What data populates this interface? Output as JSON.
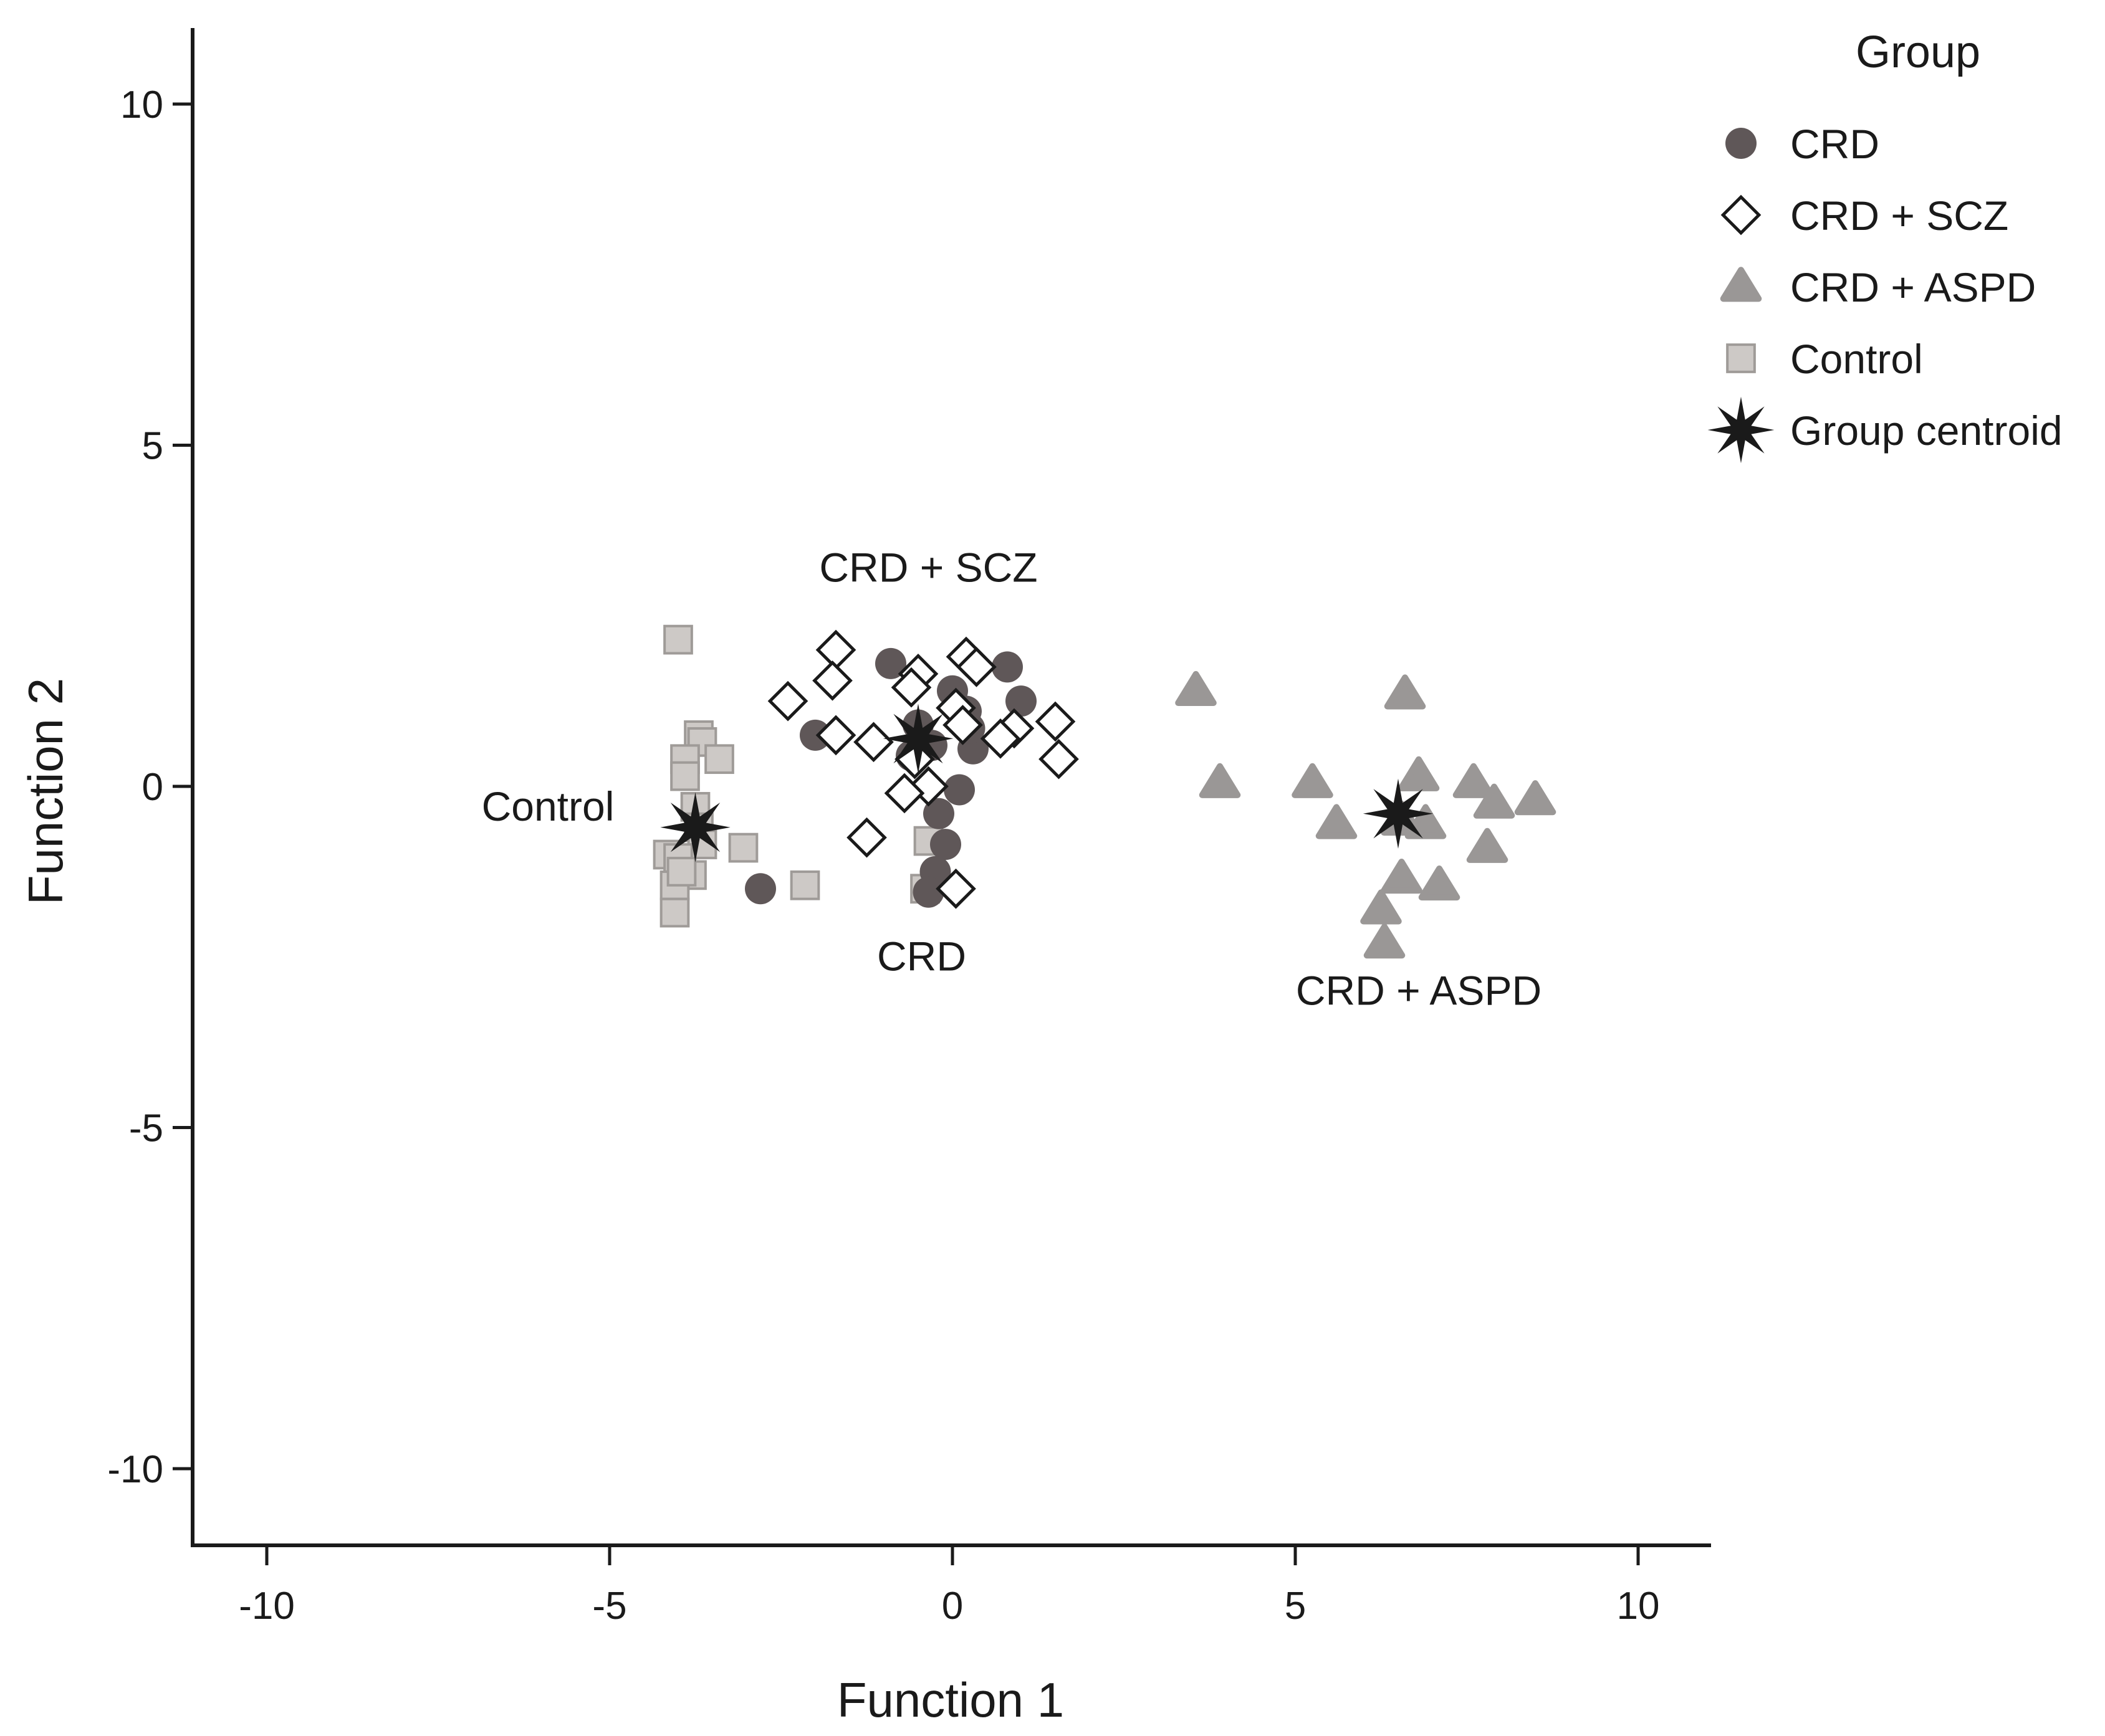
{
  "chart_data": {
    "type": "scatter",
    "title": "",
    "xlabel": "Function 1",
    "ylabel": "Function 2",
    "xlim": [
      -11.2,
      11.0
    ],
    "ylim": [
      -11.2,
      11.2
    ],
    "xticks": [
      -10,
      -5,
      0,
      5,
      10
    ],
    "yticks": [
      10,
      5,
      0,
      -5,
      -10
    ],
    "xtick_labels": [
      "-10",
      "-5",
      "0",
      "5",
      "10"
    ],
    "ytick_labels": [
      "10",
      "5",
      "0",
      "-5",
      "-10"
    ],
    "legend": {
      "title": "Group",
      "position": "top-right",
      "entries": [
        "CRD",
        "CRD + SCZ",
        "CRD + ASPD",
        "Control",
        "Group centroid"
      ]
    },
    "colors": {
      "CRD": "#5f5758",
      "CRD + SCZ": "#ffffff",
      "CRD + ASPD": "#9a9796",
      "Control": "#cdc9c6",
      "outline": "#1a1a1a"
    },
    "series": [
      {
        "name": "CRD",
        "marker": "circle",
        "points": [
          [
            -0.9,
            1.8
          ],
          [
            0.8,
            1.75
          ],
          [
            1.0,
            1.25
          ],
          [
            -2.0,
            0.75
          ],
          [
            0.3,
            0.55
          ],
          [
            -0.5,
            0.9
          ],
          [
            0.0,
            1.4
          ],
          [
            0.2,
            1.1
          ],
          [
            -0.3,
            0.6
          ],
          [
            0.1,
            -0.05
          ],
          [
            -0.2,
            -0.4
          ],
          [
            -0.1,
            -0.85
          ],
          [
            -0.25,
            -1.25
          ],
          [
            -2.8,
            -1.5
          ],
          [
            -0.35,
            -1.55
          ],
          [
            0.25,
            0.85
          ],
          [
            -0.6,
            0.45
          ]
        ]
      },
      {
        "name": "CRD + SCZ",
        "marker": "diamond",
        "points": [
          [
            -1.7,
            2.0
          ],
          [
            -1.75,
            1.55
          ],
          [
            0.2,
            1.9
          ],
          [
            0.35,
            1.75
          ],
          [
            -0.5,
            1.65
          ],
          [
            -0.6,
            1.45
          ],
          [
            -2.4,
            1.25
          ],
          [
            0.05,
            1.15
          ],
          [
            1.5,
            0.95
          ],
          [
            0.9,
            0.85
          ],
          [
            0.7,
            0.7
          ],
          [
            0.15,
            0.9
          ],
          [
            -1.7,
            0.75
          ],
          [
            -1.15,
            0.65
          ],
          [
            1.55,
            0.4
          ],
          [
            -0.55,
            0.4
          ],
          [
            -0.35,
            0.0
          ],
          [
            -0.7,
            -0.1
          ],
          [
            -1.25,
            -0.75
          ],
          [
            0.05,
            -1.5
          ]
        ]
      },
      {
        "name": "CRD + ASPD",
        "marker": "triangle",
        "points": [
          [
            3.55,
            1.4
          ],
          [
            6.6,
            1.35
          ],
          [
            3.9,
            0.05
          ],
          [
            5.25,
            0.05
          ],
          [
            6.8,
            0.15
          ],
          [
            7.6,
            0.05
          ],
          [
            7.9,
            -0.25
          ],
          [
            8.5,
            -0.2
          ],
          [
            5.6,
            -0.55
          ],
          [
            6.55,
            -0.5
          ],
          [
            6.9,
            -0.55
          ],
          [
            7.8,
            -0.9
          ],
          [
            6.55,
            -1.35
          ],
          [
            7.1,
            -1.45
          ],
          [
            6.25,
            -1.8
          ],
          [
            6.3,
            -2.3
          ]
        ]
      },
      {
        "name": "Control",
        "marker": "square",
        "points": [
          [
            -4.0,
            2.15
          ],
          [
            -3.7,
            0.75
          ],
          [
            -3.65,
            0.65
          ],
          [
            -3.4,
            0.4
          ],
          [
            -3.9,
            0.4
          ],
          [
            -3.9,
            0.15
          ],
          [
            -3.75,
            -0.3
          ],
          [
            -3.7,
            -0.6
          ],
          [
            -3.65,
            -0.85
          ],
          [
            -4.15,
            -1.0
          ],
          [
            -4.0,
            -1.05
          ],
          [
            -3.8,
            -1.3
          ],
          [
            -4.05,
            -1.45
          ],
          [
            -4.05,
            -1.85
          ],
          [
            -3.05,
            -0.9
          ],
          [
            -2.15,
            -1.45
          ],
          [
            -0.35,
            -0.8
          ],
          [
            -0.4,
            -1.5
          ],
          [
            -3.95,
            -1.25
          ]
        ]
      },
      {
        "name": "Group centroid",
        "marker": "star",
        "points": [
          [
            -0.5,
            0.7
          ],
          [
            -3.75,
            -0.6
          ],
          [
            6.5,
            -0.4
          ]
        ]
      }
    ],
    "annotations": [
      {
        "text": "CRD + SCZ",
        "x": -0.35,
        "y": 3.0
      },
      {
        "text": "Control",
        "x": -5.9,
        "y": -0.5
      },
      {
        "text": "CRD",
        "x": -0.45,
        "y": -2.7
      },
      {
        "text": "CRD + ASPD",
        "x": 6.8,
        "y": -3.2
      }
    ]
  }
}
